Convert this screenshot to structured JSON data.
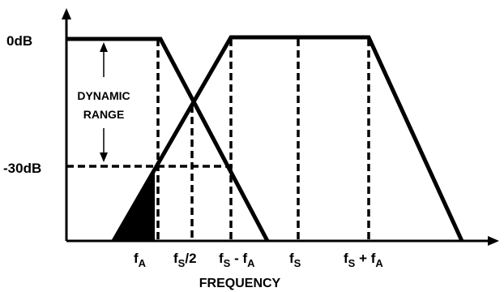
{
  "y_labels": {
    "top": "0dB",
    "bottom": "-30dB"
  },
  "dynamic_range": {
    "line1": "DYNAMIC",
    "line2": "RANGE"
  },
  "x_labels": [
    {
      "base": "f",
      "sub": "A",
      "tail": ""
    },
    {
      "base": "f",
      "sub": "S",
      "tail": "/2"
    },
    {
      "base": "f",
      "sub": "S",
      "tail": " - f",
      "sub2": "A"
    },
    {
      "base": "f",
      "sub": "S",
      "tail": ""
    },
    {
      "base": "f",
      "sub": "S",
      "tail": " + f",
      "sub2": "A"
    }
  ],
  "x_axis_title": "FREQUENCY"
}
